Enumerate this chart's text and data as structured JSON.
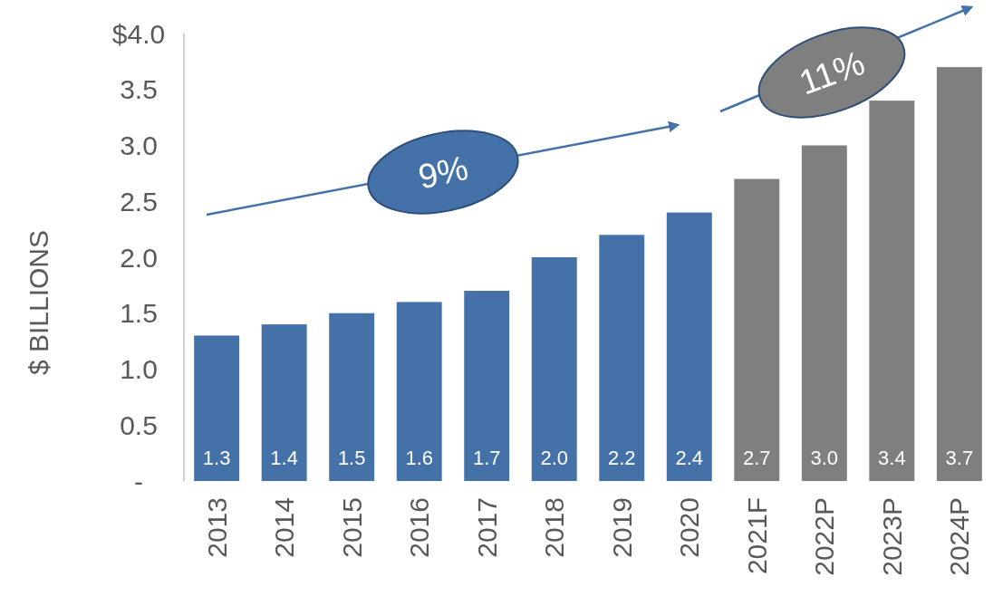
{
  "chart_data": {
    "type": "bar",
    "ylabel": "$ BILLIONS",
    "categories": [
      "2013",
      "2014",
      "2015",
      "2016",
      "2017",
      "2018",
      "2019",
      "2020",
      "2021F",
      "2022P",
      "2023P",
      "2024P"
    ],
    "values": [
      1.3,
      1.4,
      1.5,
      1.6,
      1.7,
      2.0,
      2.2,
      2.4,
      2.7,
      3.0,
      3.4,
      3.7
    ],
    "colors": [
      "#4472a8",
      "#4472a8",
      "#4472a8",
      "#4472a8",
      "#4472a8",
      "#4472a8",
      "#4472a8",
      "#4472a8",
      "#7f7f7f",
      "#7f7f7f",
      "#7f7f7f",
      "#7f7f7f"
    ],
    "ylim": [
      0,
      4
    ],
    "yticks": [
      {
        "value": 0,
        "label": "-"
      },
      {
        "value": 0.5,
        "label": "0.5"
      },
      {
        "value": 1,
        "label": "1.0"
      },
      {
        "value": 1.5,
        "label": "1.5"
      },
      {
        "value": 2,
        "label": "2.0"
      },
      {
        "value": 2.5,
        "label": "2.5"
      },
      {
        "value": 3,
        "label": "3.0"
      },
      {
        "value": 3.5,
        "label": "3.5"
      },
      {
        "value": 4,
        "label": "$4.0"
      }
    ],
    "value_labels": [
      "1.3",
      "1.4",
      "1.5",
      "1.6",
      "1.7",
      "2.0",
      "2.2",
      "2.4",
      "2.7",
      "3.0",
      "3.4",
      "3.7"
    ],
    "grid": false,
    "annotations": [
      "9%",
      "11%"
    ]
  }
}
